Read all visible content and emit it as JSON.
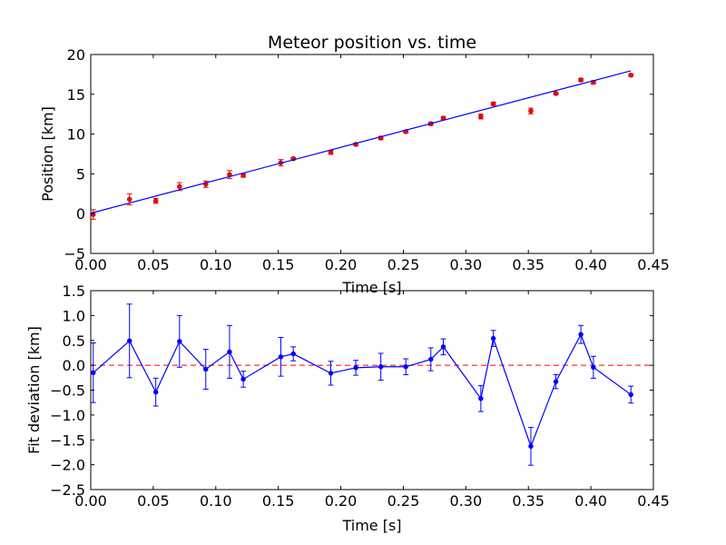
{
  "chart_data": [
    {
      "type": "scatter",
      "title": "Meteor position vs. time",
      "xlabel": "Time [s]",
      "ylabel": "Position [km]",
      "xlim": [
        0.0,
        0.45
      ],
      "ylim": [
        -5,
        20
      ],
      "xticks": [
        "0.00",
        "0.05",
        "0.10",
        "0.15",
        "0.20",
        "0.25",
        "0.30",
        "0.35",
        "0.40",
        "0.45"
      ],
      "yticks": [
        "−5",
        "0",
        "5",
        "10",
        "15",
        "20"
      ],
      "grid": false,
      "series": [
        {
          "style": "points-with-errorbars",
          "color": "#ff0000",
          "points": [
            {
              "x": 0.002,
              "y": -0.1,
              "err": 0.6
            },
            {
              "x": 0.031,
              "y": 1.8,
              "err": 0.7
            },
            {
              "x": 0.052,
              "y": 1.6,
              "err": 0.3
            },
            {
              "x": 0.071,
              "y": 3.4,
              "err": 0.5
            },
            {
              "x": 0.092,
              "y": 3.7,
              "err": 0.4
            },
            {
              "x": 0.111,
              "y": 4.9,
              "err": 0.5
            },
            {
              "x": 0.122,
              "y": 4.8,
              "err": 0.2
            },
            {
              "x": 0.152,
              "y": 6.4,
              "err": 0.4
            },
            {
              "x": 0.162,
              "y": 6.9,
              "err": 0.15
            },
            {
              "x": 0.192,
              "y": 7.7,
              "err": 0.25
            },
            {
              "x": 0.212,
              "y": 8.7,
              "err": 0.15
            },
            {
              "x": 0.232,
              "y": 9.5,
              "err": 0.2
            },
            {
              "x": 0.252,
              "y": 10.3,
              "err": 0.15
            },
            {
              "x": 0.272,
              "y": 11.3,
              "err": 0.2
            },
            {
              "x": 0.282,
              "y": 12.0,
              "err": 0.2
            },
            {
              "x": 0.312,
              "y": 12.2,
              "err": 0.3
            },
            {
              "x": 0.322,
              "y": 13.8,
              "err": 0.2
            },
            {
              "x": 0.352,
              "y": 12.9,
              "err": 0.35
            },
            {
              "x": 0.372,
              "y": 15.1,
              "err": 0.15
            },
            {
              "x": 0.392,
              "y": 16.8,
              "err": 0.2
            },
            {
              "x": 0.402,
              "y": 16.5,
              "err": 0.2
            },
            {
              "x": 0.432,
              "y": 17.4,
              "err": 0.15
            }
          ]
        },
        {
          "style": "line",
          "color": "#0000ff",
          "points": [
            {
              "x": 0.0,
              "y": 0.05
            },
            {
              "x": 0.432,
              "y": 17.95
            }
          ]
        }
      ]
    },
    {
      "type": "line",
      "xlabel": "Time [s]",
      "ylabel": "Fit deviation [km]",
      "xlim": [
        0.0,
        0.45
      ],
      "ylim": [
        -2.5,
        1.5
      ],
      "xticks": [
        "0.00",
        "0.05",
        "0.10",
        "0.15",
        "0.20",
        "0.25",
        "0.30",
        "0.35",
        "0.40",
        "0.45"
      ],
      "yticks": [
        "−2.5",
        "−2.0",
        "−1.5",
        "−1.0",
        "−0.5",
        "0.0",
        "0.5",
        "1.0",
        "1.5"
      ],
      "grid": false,
      "reference_line": {
        "y": 0.0,
        "color": "#ff0000",
        "style": "dashed"
      },
      "series": [
        {
          "style": "line-with-errorbars",
          "color": "#0000ff",
          "points": [
            {
              "x": 0.002,
              "y": -0.15,
              "err": 0.6
            },
            {
              "x": 0.031,
              "y": 0.49,
              "err": 0.74
            },
            {
              "x": 0.052,
              "y": -0.54,
              "err": 0.28
            },
            {
              "x": 0.071,
              "y": 0.48,
              "err": 0.52
            },
            {
              "x": 0.092,
              "y": -0.08,
              "err": 0.4
            },
            {
              "x": 0.111,
              "y": 0.27,
              "err": 0.53
            },
            {
              "x": 0.122,
              "y": -0.28,
              "err": 0.16
            },
            {
              "x": 0.152,
              "y": 0.17,
              "err": 0.39
            },
            {
              "x": 0.162,
              "y": 0.23,
              "err": 0.14
            },
            {
              "x": 0.192,
              "y": -0.16,
              "err": 0.24
            },
            {
              "x": 0.212,
              "y": -0.05,
              "err": 0.15
            },
            {
              "x": 0.232,
              "y": -0.03,
              "err": 0.27
            },
            {
              "x": 0.252,
              "y": -0.03,
              "err": 0.16
            },
            {
              "x": 0.272,
              "y": 0.12,
              "err": 0.23
            },
            {
              "x": 0.282,
              "y": 0.37,
              "err": 0.16
            },
            {
              "x": 0.312,
              "y": -0.67,
              "err": 0.26
            },
            {
              "x": 0.322,
              "y": 0.54,
              "err": 0.16
            },
            {
              "x": 0.352,
              "y": -1.63,
              "err": 0.38
            },
            {
              "x": 0.372,
              "y": -0.33,
              "err": 0.14
            },
            {
              "x": 0.392,
              "y": 0.62,
              "err": 0.18
            },
            {
              "x": 0.402,
              "y": -0.04,
              "err": 0.22
            },
            {
              "x": 0.432,
              "y": -0.59,
              "err": 0.17
            }
          ]
        }
      ]
    }
  ]
}
